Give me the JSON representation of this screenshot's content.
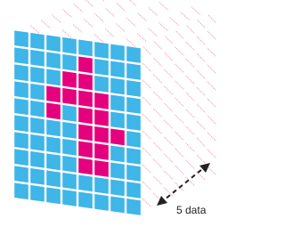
{
  "label": "5 data"
}
